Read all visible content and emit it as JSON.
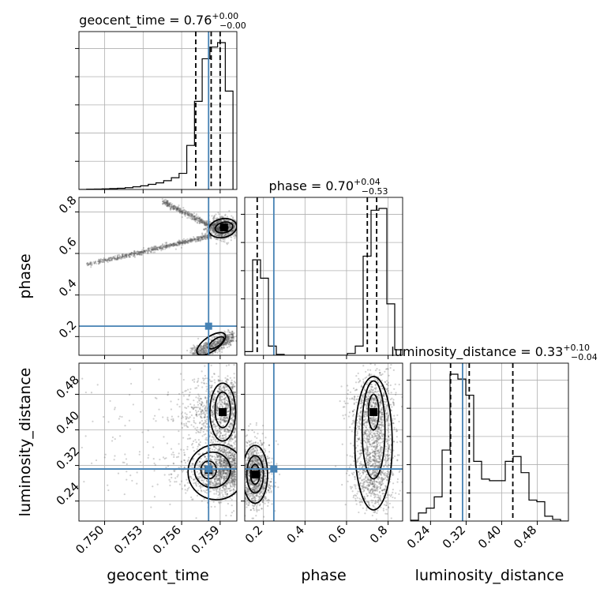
{
  "chart_data": {
    "type": "corner",
    "parameters": [
      "geocent_time",
      "phase",
      "luminosity_distance"
    ],
    "axis_labels": [
      "geocent_time",
      "phase",
      "luminosity_distance"
    ],
    "titles": {
      "geocent_time": {
        "prefix": "geocent_time = ",
        "median": "0.76",
        "plus": "+0.00",
        "minus": "−0.00"
      },
      "phase": {
        "prefix": "phase = ",
        "median": "0.70",
        "plus": "+0.04",
        "minus": "−0.53"
      },
      "luminosity_distance": {
        "prefix": "luminosity_distance = ",
        "median": "0.33",
        "plus": "+0.10",
        "minus": "−0.04"
      }
    },
    "ranges": {
      "geocent_time": [
        0.748,
        0.7603
      ],
      "phase": [
        0.11,
        0.87
      ],
      "luminosity_distance": [
        0.195,
        0.55
      ]
    },
    "ticks": {
      "geocent_time": [
        0.75,
        0.753,
        0.756,
        0.759
      ],
      "geocent_time_labels": [
        "0.750",
        "0.753",
        "0.756",
        "0.759"
      ],
      "phase_x": [
        0.2,
        0.4,
        0.6,
        0.8
      ],
      "phase_x_labels": [
        "0.2",
        "0.4",
        "0.6",
        "0.8"
      ],
      "phase_y": [
        0.2,
        0.4,
        0.6,
        0.8
      ],
      "phase_y_labels": [
        "0.2",
        "0.4",
        "0.6",
        "0.8"
      ],
      "luminosity_distance": [
        0.24,
        0.32,
        0.4,
        0.48
      ],
      "luminosity_distance_labels": [
        "0.24",
        "0.32",
        "0.40",
        "0.48"
      ]
    },
    "truths": {
      "geocent_time": 0.7581,
      "phase": 0.25,
      "luminosity_distance": 0.312
    },
    "quantiles": {
      "geocent_time": [
        0.7571,
        0.7583,
        0.759
      ],
      "phase": [
        0.17,
        0.7,
        0.745
      ],
      "luminosity_distance": [
        0.285,
        0.327,
        0.425
      ]
    },
    "histograms": {
      "geocent_time": {
        "edges": [
          0.748,
          0.7486,
          0.7492,
          0.7498,
          0.7504,
          0.751,
          0.7516,
          0.7522,
          0.7528,
          0.7534,
          0.754,
          0.7546,
          0.7552,
          0.7558,
          0.7564,
          0.757,
          0.7576,
          0.7582,
          0.7588,
          0.7594,
          0.76
        ],
        "counts": [
          0,
          0.002,
          0.003,
          0.004,
          0.006,
          0.008,
          0.012,
          0.018,
          0.025,
          0.035,
          0.045,
          0.06,
          0.08,
          0.11,
          0.3,
          0.6,
          0.89,
          0.97,
          1.0,
          0.67
        ]
      },
      "phase": {
        "edges": [
          0.11,
          0.148,
          0.186,
          0.224,
          0.262,
          0.3,
          0.338,
          0.376,
          0.414,
          0.452,
          0.49,
          0.528,
          0.566,
          0.604,
          0.642,
          0.68,
          0.718,
          0.756,
          0.794,
          0.832,
          0.87
        ],
        "counts": [
          0.02,
          0.52,
          0.42,
          0.05,
          0.005,
          0,
          0,
          0,
          0,
          0,
          0,
          0,
          0,
          0.01,
          0.05,
          0.54,
          0.79,
          0.8,
          0.28,
          0.03
        ]
      },
      "luminosity_distance": {
        "edges": [
          0.195,
          0.2128,
          0.2305,
          0.2483,
          0.266,
          0.2838,
          0.3015,
          0.3193,
          0.337,
          0.3548,
          0.3725,
          0.3903,
          0.408,
          0.4258,
          0.4435,
          0.4613,
          0.479,
          0.4968,
          0.5145,
          0.5323,
          0.55
        ],
        "counts": [
          0.005,
          0.05,
          0.08,
          0.15,
          0.44,
          0.91,
          0.88,
          0.78,
          0.37,
          0.26,
          0.25,
          0.25,
          0.37,
          0.4,
          0.3,
          0.13,
          0.12,
          0.03,
          0.01,
          0
        ]
      }
    },
    "peak_markers": {
      "geocent_time|phase": [
        [
          0.7593,
          0.725
        ]
      ],
      "geocent_time|luminosity_distance": [
        [
          0.7592,
          0.44
        ],
        [
          0.7581,
          0.31
        ]
      ],
      "phase|luminosity_distance": [
        [
          0.73,
          0.44
        ],
        [
          0.16,
          0.3
        ]
      ]
    },
    "grid": true,
    "colors": {
      "truth": "#4682b4",
      "hist": "#000000",
      "points": "#555555",
      "grid": "#b0b0b0"
    }
  }
}
